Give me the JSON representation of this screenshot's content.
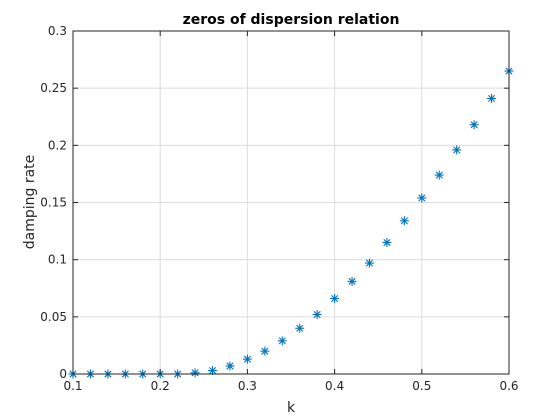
{
  "chart_data": {
    "type": "scatter",
    "title": "zeros of dispersion relation",
    "xlabel": "k",
    "ylabel": "damping rate",
    "xlim": [
      0.1,
      0.6
    ],
    "ylim": [
      0,
      0.3
    ],
    "xticks": [
      "0.1",
      "0.2",
      "0.3",
      "0.4",
      "0.5",
      "0.6"
    ],
    "yticks": [
      "0",
      "0.05",
      "0.1",
      "0.15",
      "0.2",
      "0.25",
      "0.3"
    ],
    "grid": true,
    "marker": "asterisk",
    "marker_color": "#0072bd",
    "series": [
      {
        "x": [
          0.1,
          0.12,
          0.14,
          0.16,
          0.18,
          0.2,
          0.22,
          0.24,
          0.26,
          0.28,
          0.3,
          0.32,
          0.34,
          0.36,
          0.38,
          0.4,
          0.42,
          0.44,
          0.46,
          0.48,
          0.5,
          0.52,
          0.54,
          0.56,
          0.58,
          0.6
        ],
        "values": [
          0.0,
          0.0,
          0.0,
          0.0,
          0.0,
          0.0,
          0.0,
          0.001,
          0.003,
          0.007,
          0.013,
          0.02,
          0.029,
          0.04,
          0.052,
          0.066,
          0.081,
          0.097,
          0.115,
          0.134,
          0.154,
          0.174,
          0.196,
          0.218,
          0.241,
          0.265
        ]
      }
    ]
  }
}
